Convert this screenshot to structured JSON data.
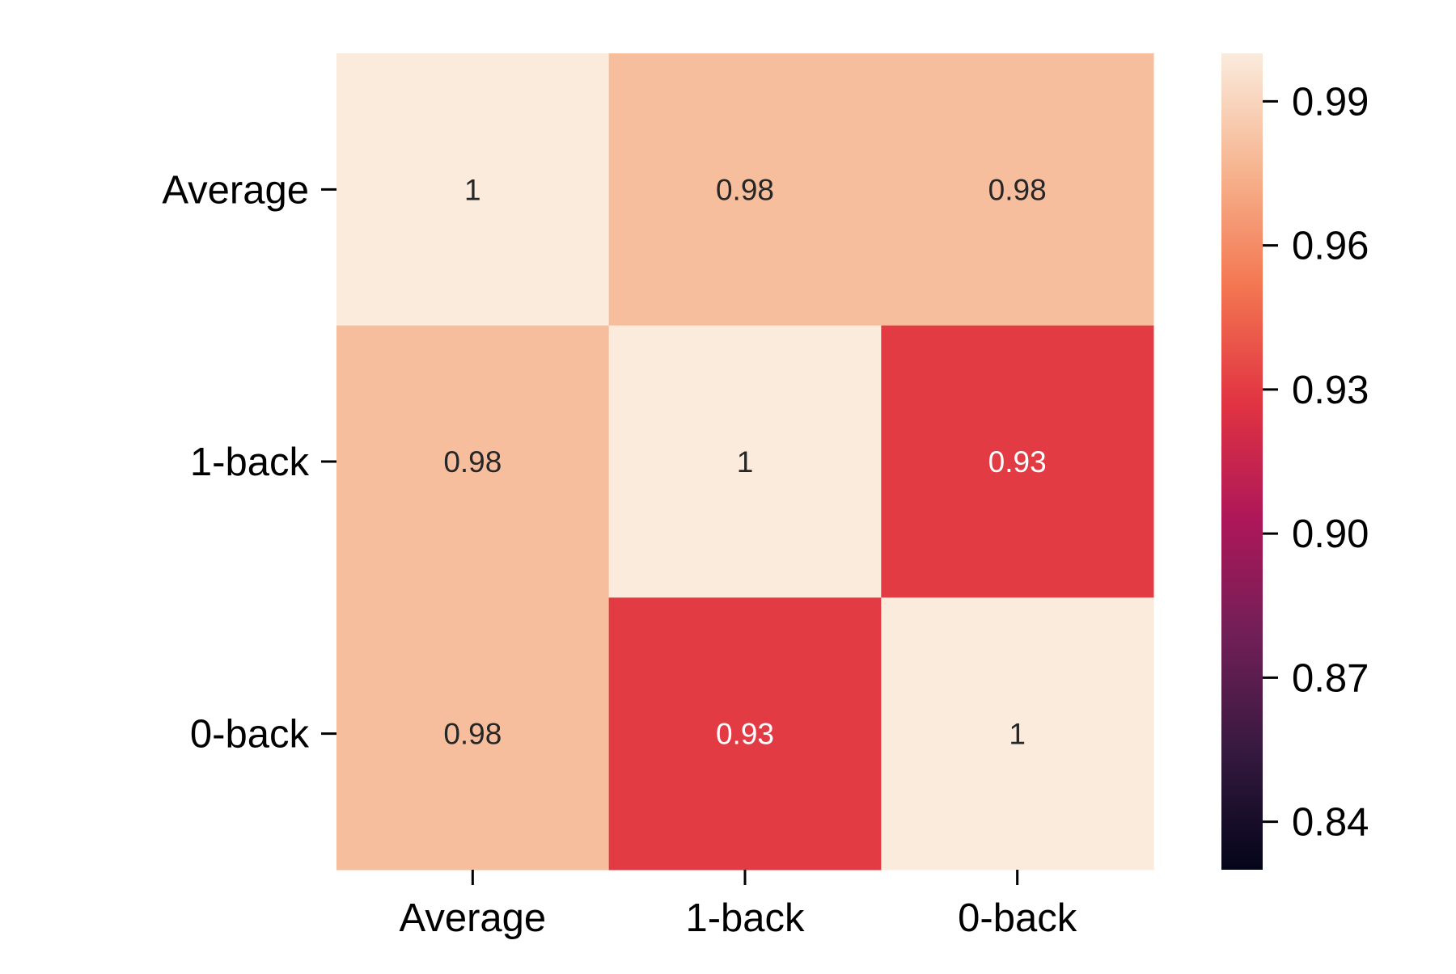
{
  "chart_data": {
    "type": "heatmap",
    "title": "",
    "xlabel": "",
    "ylabel": "",
    "x_categories": [
      "Average",
      "1-back",
      "0-back"
    ],
    "y_categories": [
      "Average",
      "1-back",
      "0-back"
    ],
    "values": [
      [
        1.0,
        0.98,
        0.98
      ],
      [
        0.98,
        1.0,
        0.93
      ],
      [
        0.98,
        0.93,
        1.0
      ]
    ],
    "annotations": [
      [
        "1",
        "0.98",
        "0.98"
      ],
      [
        "0.98",
        "1",
        "0.93"
      ],
      [
        "0.98",
        "0.93",
        "1"
      ]
    ],
    "colorbar": {
      "range": [
        0.83,
        1.0
      ],
      "ticks": [
        0.84,
        0.87,
        0.9,
        0.93,
        0.96,
        0.99
      ],
      "tick_labels": [
        "0.84",
        "0.87",
        "0.90",
        "0.93",
        "0.96",
        "0.99"
      ],
      "colormap": "rocket",
      "colormap_stops": [
        "#03051a",
        "#35193e",
        "#701f57",
        "#ad1759",
        "#e13342",
        "#f37651",
        "#f6b48f",
        "#faebdd"
      ]
    },
    "grid": false,
    "legend": "colorbar-right"
  }
}
